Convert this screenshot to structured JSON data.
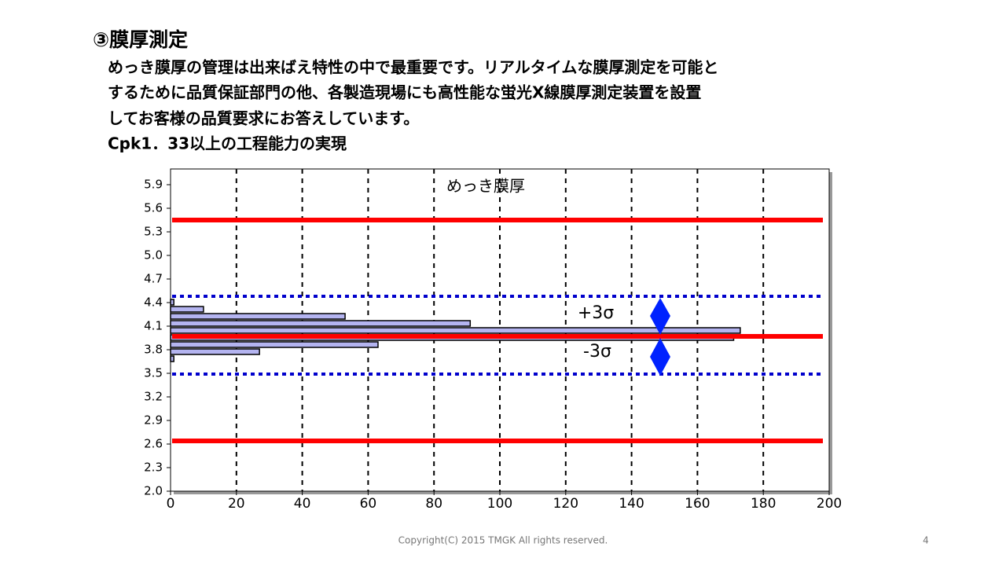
{
  "header": {
    "title": "③膜厚測定",
    "lines": [
      "めっき膜厚の管理は出来ばえ特性の中で最重要です。リアルタイムな膜厚測定を可能と",
      "するために品質保証部門の他、各製造現場にも高性能な蛍光X線膜厚測定装置を設置",
      "してお客様の品質要求にお答えしています。",
      "Cpk1．33以上の工程能力の実現"
    ]
  },
  "chart_data": {
    "type": "histogram",
    "orientation": "horizontal",
    "title": "めっき膜厚",
    "bins": [
      3.64,
      3.73,
      3.82,
      3.91,
      4.0,
      4.09,
      4.18,
      4.27,
      4.36,
      4.45
    ],
    "values": [
      1,
      27,
      63,
      171,
      173,
      91,
      53,
      10,
      1
    ],
    "color": "#b4b4f0",
    "xlim": [
      0,
      200
    ],
    "xticks": [
      0,
      20,
      40,
      60,
      80,
      100,
      120,
      140,
      160,
      180,
      200
    ],
    "ylim": [
      2.0,
      6.1
    ],
    "yticks": [
      {
        "value": 2.0,
        "label": "2.0"
      },
      2.3,
      2.6,
      2.9,
      3.2,
      3.5,
      3.8,
      4.1,
      4.4,
      4.7,
      {
        "value": 5.0,
        "label": "5.0"
      },
      5.3,
      5.6,
      5.9
    ],
    "grid": true,
    "reference_lines": [
      {
        "value": 5.45,
        "color": "#ff0000",
        "style": "solid"
      },
      {
        "value": 3.97,
        "color": "#ff0000",
        "style": "solid"
      },
      {
        "value": 2.64,
        "color": "#ff0000",
        "style": "solid"
      },
      {
        "value": 4.48,
        "color": "#0000cc",
        "style": "dotted"
      },
      {
        "value": 3.49,
        "color": "#0000cc",
        "style": "dotted"
      }
    ],
    "annotations": [
      "+3σ",
      "-3σ"
    ]
  },
  "footer": {
    "copyright": "Copyright(C)   2015  TMGK All rights reserved.",
    "page": "4"
  }
}
